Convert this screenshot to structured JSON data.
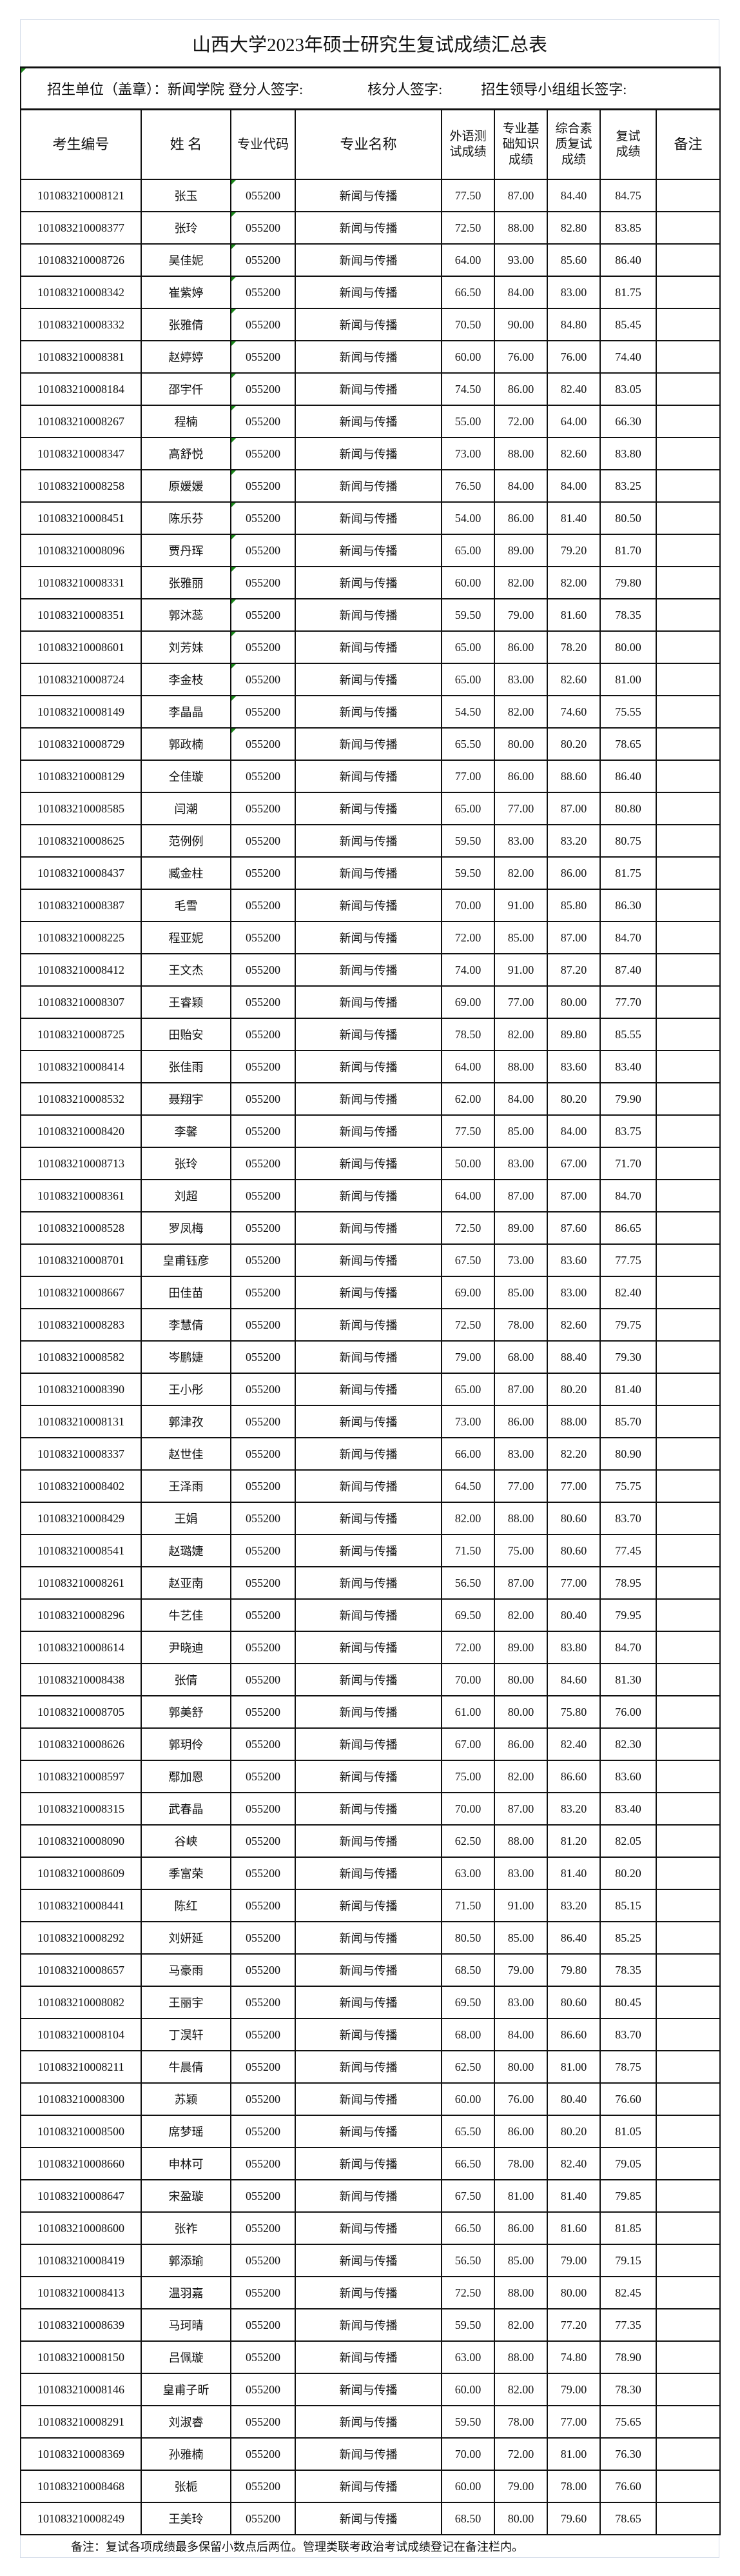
{
  "title": "山西大学2023年硕士研究生复试成绩汇总表",
  "info": {
    "unit": "招生单位（盖章）：新闻学院",
    "recorder": "登分人签字:",
    "checker": "核分人签字:",
    "leader": "招生领导小组组长签字:"
  },
  "columns": [
    "考生编号",
    "姓 名",
    "专业代码",
    "专业名称",
    "外语测试成绩",
    "专业基础知识成绩",
    "综合素质复试成绩",
    "复试成绩",
    "备注"
  ],
  "marker_color": "#1a8a1a",
  "rows": [
    [
      "101083210008121",
      "张玉",
      "055200",
      "新闻与传播",
      "77.50",
      "87.00",
      "84.40",
      "84.75",
      ""
    ],
    [
      "101083210008377",
      "张玲",
      "055200",
      "新闻与传播",
      "72.50",
      "88.00",
      "82.80",
      "83.85",
      ""
    ],
    [
      "101083210008726",
      "吴佳妮",
      "055200",
      "新闻与传播",
      "64.00",
      "93.00",
      "85.60",
      "86.40",
      ""
    ],
    [
      "101083210008342",
      "崔紫婷",
      "055200",
      "新闻与传播",
      "66.50",
      "84.00",
      "83.00",
      "81.75",
      ""
    ],
    [
      "101083210008332",
      "张雅倩",
      "055200",
      "新闻与传播",
      "70.50",
      "90.00",
      "84.80",
      "85.45",
      ""
    ],
    [
      "101083210008381",
      "赵婷婷",
      "055200",
      "新闻与传播",
      "60.00",
      "76.00",
      "76.00",
      "74.40",
      ""
    ],
    [
      "101083210008184",
      "邵宇仟",
      "055200",
      "新闻与传播",
      "74.50",
      "86.00",
      "82.40",
      "83.05",
      ""
    ],
    [
      "101083210008267",
      "程楠",
      "055200",
      "新闻与传播",
      "55.00",
      "72.00",
      "64.00",
      "66.30",
      ""
    ],
    [
      "101083210008347",
      "高舒悦",
      "055200",
      "新闻与传播",
      "73.00",
      "88.00",
      "82.60",
      "83.80",
      ""
    ],
    [
      "101083210008258",
      "原媛媛",
      "055200",
      "新闻与传播",
      "76.50",
      "84.00",
      "84.00",
      "83.25",
      ""
    ],
    [
      "101083210008451",
      "陈乐芬",
      "055200",
      "新闻与传播",
      "54.00",
      "86.00",
      "81.40",
      "80.50",
      ""
    ],
    [
      "101083210008096",
      "贾丹珲",
      "055200",
      "新闻与传播",
      "65.00",
      "89.00",
      "79.20",
      "81.70",
      ""
    ],
    [
      "101083210008331",
      "张雅丽",
      "055200",
      "新闻与传播",
      "60.00",
      "82.00",
      "82.00",
      "79.80",
      ""
    ],
    [
      "101083210008351",
      "郭沐蕊",
      "055200",
      "新闻与传播",
      "59.50",
      "79.00",
      "81.60",
      "78.35",
      ""
    ],
    [
      "101083210008601",
      "刘芳妹",
      "055200",
      "新闻与传播",
      "65.00",
      "86.00",
      "78.20",
      "80.00",
      ""
    ],
    [
      "101083210008724",
      "李金枝",
      "055200",
      "新闻与传播",
      "65.00",
      "83.00",
      "82.60",
      "81.00",
      ""
    ],
    [
      "101083210008149",
      "李晶晶",
      "055200",
      "新闻与传播",
      "54.50",
      "82.00",
      "74.60",
      "75.55",
      ""
    ],
    [
      "101083210008729",
      "郭政楠",
      "055200",
      "新闻与传播",
      "65.50",
      "80.00",
      "80.20",
      "78.65",
      ""
    ],
    [
      "101083210008129",
      "仝佳璇",
      "055200",
      "新闻与传播",
      "77.00",
      "86.00",
      "88.60",
      "86.40",
      ""
    ],
    [
      "101083210008585",
      "闫潮",
      "055200",
      "新闻与传播",
      "65.00",
      "77.00",
      "87.00",
      "80.80",
      ""
    ],
    [
      "101083210008625",
      "范例例",
      "055200",
      "新闻与传播",
      "59.50",
      "83.00",
      "83.20",
      "80.75",
      ""
    ],
    [
      "101083210008437",
      "臧金柱",
      "055200",
      "新闻与传播",
      "59.50",
      "82.00",
      "86.00",
      "81.75",
      ""
    ],
    [
      "101083210008387",
      "毛雪",
      "055200",
      "新闻与传播",
      "70.00",
      "91.00",
      "85.80",
      "86.30",
      ""
    ],
    [
      "101083210008225",
      "程亚妮",
      "055200",
      "新闻与传播",
      "72.00",
      "85.00",
      "87.00",
      "84.70",
      ""
    ],
    [
      "101083210008412",
      "王文杰",
      "055200",
      "新闻与传播",
      "74.00",
      "91.00",
      "87.20",
      "87.40",
      ""
    ],
    [
      "101083210008307",
      "王睿颖",
      "055200",
      "新闻与传播",
      "69.00",
      "77.00",
      "80.00",
      "77.70",
      ""
    ],
    [
      "101083210008725",
      "田贻安",
      "055200",
      "新闻与传播",
      "78.50",
      "82.00",
      "89.80",
      "85.55",
      ""
    ],
    [
      "101083210008414",
      "张佳雨",
      "055200",
      "新闻与传播",
      "64.00",
      "88.00",
      "83.60",
      "83.40",
      ""
    ],
    [
      "101083210008532",
      "聂翔宇",
      "055200",
      "新闻与传播",
      "62.00",
      "84.00",
      "80.20",
      "79.90",
      ""
    ],
    [
      "101083210008420",
      "李馨",
      "055200",
      "新闻与传播",
      "77.50",
      "85.00",
      "84.00",
      "83.75",
      ""
    ],
    [
      "101083210008713",
      "张玲",
      "055200",
      "新闻与传播",
      "50.00",
      "83.00",
      "67.00",
      "71.70",
      ""
    ],
    [
      "101083210008361",
      "刘超",
      "055200",
      "新闻与传播",
      "64.00",
      "87.00",
      "87.00",
      "84.70",
      ""
    ],
    [
      "101083210008528",
      "罗凤梅",
      "055200",
      "新闻与传播",
      "72.50",
      "89.00",
      "87.60",
      "86.65",
      ""
    ],
    [
      "101083210008701",
      "皇甫钰彦",
      "055200",
      "新闻与传播",
      "67.50",
      "73.00",
      "83.60",
      "77.75",
      ""
    ],
    [
      "101083210008667",
      "田佳苗",
      "055200",
      "新闻与传播",
      "69.00",
      "85.00",
      "83.00",
      "82.40",
      ""
    ],
    [
      "101083210008283",
      "李慧倩",
      "055200",
      "新闻与传播",
      "72.50",
      "78.00",
      "82.60",
      "79.75",
      ""
    ],
    [
      "101083210008582",
      "岑鹏婕",
      "055200",
      "新闻与传播",
      "79.00",
      "68.00",
      "88.40",
      "79.30",
      ""
    ],
    [
      "101083210008390",
      "王小彤",
      "055200",
      "新闻与传播",
      "65.00",
      "87.00",
      "80.20",
      "81.40",
      ""
    ],
    [
      "101083210008131",
      "郭津孜",
      "055200",
      "新闻与传播",
      "73.00",
      "86.00",
      "88.00",
      "85.70",
      ""
    ],
    [
      "101083210008337",
      "赵世佳",
      "055200",
      "新闻与传播",
      "66.00",
      "83.00",
      "82.20",
      "80.90",
      ""
    ],
    [
      "101083210008402",
      "王泽雨",
      "055200",
      "新闻与传播",
      "64.50",
      "77.00",
      "77.00",
      "75.75",
      ""
    ],
    [
      "101083210008429",
      "王娟",
      "055200",
      "新闻与传播",
      "82.00",
      "88.00",
      "80.60",
      "83.70",
      ""
    ],
    [
      "101083210008541",
      "赵璐婕",
      "055200",
      "新闻与传播",
      "71.50",
      "75.00",
      "80.60",
      "77.45",
      ""
    ],
    [
      "101083210008261",
      "赵亚南",
      "055200",
      "新闻与传播",
      "56.50",
      "87.00",
      "77.00",
      "78.95",
      ""
    ],
    [
      "101083210008296",
      "牛艺佳",
      "055200",
      "新闻与传播",
      "69.50",
      "82.00",
      "80.40",
      "79.95",
      ""
    ],
    [
      "101083210008614",
      "尹晓迪",
      "055200",
      "新闻与传播",
      "72.00",
      "89.00",
      "83.80",
      "84.70",
      ""
    ],
    [
      "101083210008438",
      "张倩",
      "055200",
      "新闻与传播",
      "70.00",
      "80.00",
      "84.60",
      "81.30",
      ""
    ],
    [
      "101083210008705",
      "郭美舒",
      "055200",
      "新闻与传播",
      "61.00",
      "80.00",
      "75.80",
      "76.00",
      ""
    ],
    [
      "101083210008626",
      "郭玥伶",
      "055200",
      "新闻与传播",
      "67.00",
      "86.00",
      "82.40",
      "82.30",
      ""
    ],
    [
      "101083210008597",
      "鄢加恩",
      "055200",
      "新闻与传播",
      "75.00",
      "82.00",
      "86.60",
      "83.60",
      ""
    ],
    [
      "101083210008315",
      "武春晶",
      "055200",
      "新闻与传播",
      "70.00",
      "87.00",
      "83.20",
      "83.40",
      ""
    ],
    [
      "101083210008090",
      "谷峡",
      "055200",
      "新闻与传播",
      "62.50",
      "88.00",
      "81.20",
      "82.05",
      ""
    ],
    [
      "101083210008609",
      "季富荣",
      "055200",
      "新闻与传播",
      "63.00",
      "83.00",
      "81.40",
      "80.20",
      ""
    ],
    [
      "101083210008441",
      "陈红",
      "055200",
      "新闻与传播",
      "71.50",
      "91.00",
      "83.20",
      "85.15",
      ""
    ],
    [
      "101083210008292",
      "刘妍延",
      "055200",
      "新闻与传播",
      "80.50",
      "85.00",
      "86.40",
      "85.25",
      ""
    ],
    [
      "101083210008657",
      "马豪雨",
      "055200",
      "新闻与传播",
      "68.50",
      "79.00",
      "79.80",
      "78.35",
      ""
    ],
    [
      "101083210008082",
      "王丽宇",
      "055200",
      "新闻与传播",
      "69.50",
      "83.00",
      "80.60",
      "80.45",
      ""
    ],
    [
      "101083210008104",
      "丁淏轩",
      "055200",
      "新闻与传播",
      "68.00",
      "84.00",
      "86.60",
      "83.70",
      ""
    ],
    [
      "101083210008211",
      "牛晨倩",
      "055200",
      "新闻与传播",
      "62.50",
      "80.00",
      "81.00",
      "78.75",
      ""
    ],
    [
      "101083210008300",
      "苏颖",
      "055200",
      "新闻与传播",
      "60.00",
      "76.00",
      "80.40",
      "76.60",
      ""
    ],
    [
      "101083210008500",
      "席梦瑶",
      "055200",
      "新闻与传播",
      "65.50",
      "86.00",
      "80.20",
      "81.05",
      ""
    ],
    [
      "101083210008660",
      "申林可",
      "055200",
      "新闻与传播",
      "66.50",
      "78.00",
      "82.40",
      "79.05",
      ""
    ],
    [
      "101083210008647",
      "宋盈璇",
      "055200",
      "新闻与传播",
      "67.50",
      "81.00",
      "81.40",
      "79.85",
      ""
    ],
    [
      "101083210008600",
      "张祚",
      "055200",
      "新闻与传播",
      "66.50",
      "86.00",
      "81.60",
      "81.85",
      ""
    ],
    [
      "101083210008419",
      "郭添瑜",
      "055200",
      "新闻与传播",
      "56.50",
      "85.00",
      "79.00",
      "79.15",
      ""
    ],
    [
      "101083210008413",
      "温羽嘉",
      "055200",
      "新闻与传播",
      "72.50",
      "88.00",
      "80.00",
      "82.45",
      ""
    ],
    [
      "101083210008639",
      "马珂晴",
      "055200",
      "新闻与传播",
      "59.50",
      "82.00",
      "77.20",
      "77.35",
      ""
    ],
    [
      "101083210008150",
      "吕佩璇",
      "055200",
      "新闻与传播",
      "63.00",
      "88.00",
      "74.80",
      "78.90",
      ""
    ],
    [
      "101083210008146",
      "皇甫子昕",
      "055200",
      "新闻与传播",
      "60.00",
      "82.00",
      "79.00",
      "78.30",
      ""
    ],
    [
      "101083210008291",
      "刘淑睿",
      "055200",
      "新闻与传播",
      "59.50",
      "78.00",
      "77.00",
      "75.65",
      ""
    ],
    [
      "101083210008369",
      "孙雅楠",
      "055200",
      "新闻与传播",
      "70.00",
      "72.00",
      "81.00",
      "76.30",
      ""
    ],
    [
      "101083210008468",
      "张栀",
      "055200",
      "新闻与传播",
      "60.00",
      "79.00",
      "78.00",
      "76.60",
      ""
    ],
    [
      "101083210008249",
      "王美玲",
      "055200",
      "新闻与传播",
      "68.50",
      "80.00",
      "79.60",
      "78.65",
      ""
    ]
  ],
  "footer_note": "备注：复试各项成绩最多保留小数点后两位。管理类联考政治考试成绩登记在备注栏内。"
}
